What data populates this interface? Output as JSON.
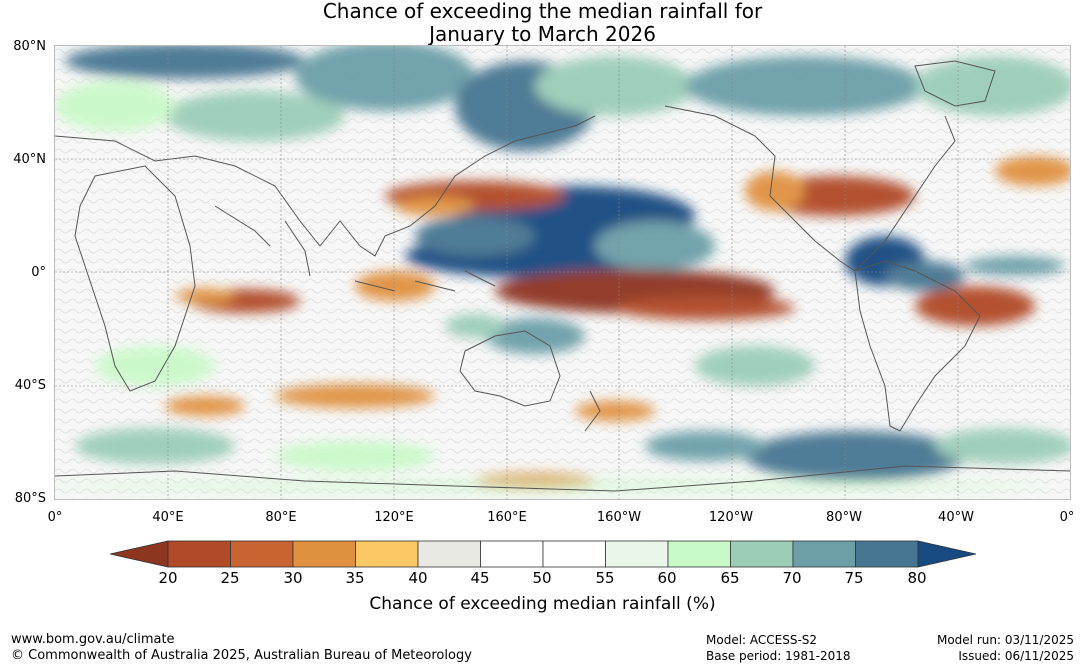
{
  "title": {
    "line1": "Chance of exceeding the median rainfall for",
    "line2": "January to March 2026"
  },
  "map": {
    "lat_labels": [
      "80°N",
      "40°N",
      "0°",
      "40°S",
      "80°S"
    ],
    "lon_labels": [
      "0°",
      "40°E",
      "80°E",
      "120°E",
      "160°E",
      "160°W",
      "120°W",
      "80°W",
      "40°W",
      "0°"
    ]
  },
  "colorbar": {
    "ticks": [
      "20",
      "25",
      "30",
      "35",
      "40",
      "45",
      "50",
      "55",
      "60",
      "65",
      "70",
      "75",
      "80"
    ],
    "colors": [
      "#8e3520",
      "#b14a26",
      "#c96331",
      "#e0913f",
      "#fcc865",
      "#e9e9e4",
      "#ffffff",
      "#ffffff",
      "#e9f6e9",
      "#c9f9c9",
      "#9bcdb7",
      "#6c9fa8",
      "#467691",
      "#164a80"
    ],
    "label": "Chance of exceeding median rainfall (%)"
  },
  "footer": {
    "website": "www.bom.gov.au/climate",
    "copyright": "© Commonwealth of Australia 2025, Australian Bureau of Meteorology",
    "model": "Model: ACCESS-S2",
    "base_period": "Base period: 1981-2018",
    "model_run": "Model run: 03/11/2025",
    "issued": "Issued: 06/11/2025"
  }
}
